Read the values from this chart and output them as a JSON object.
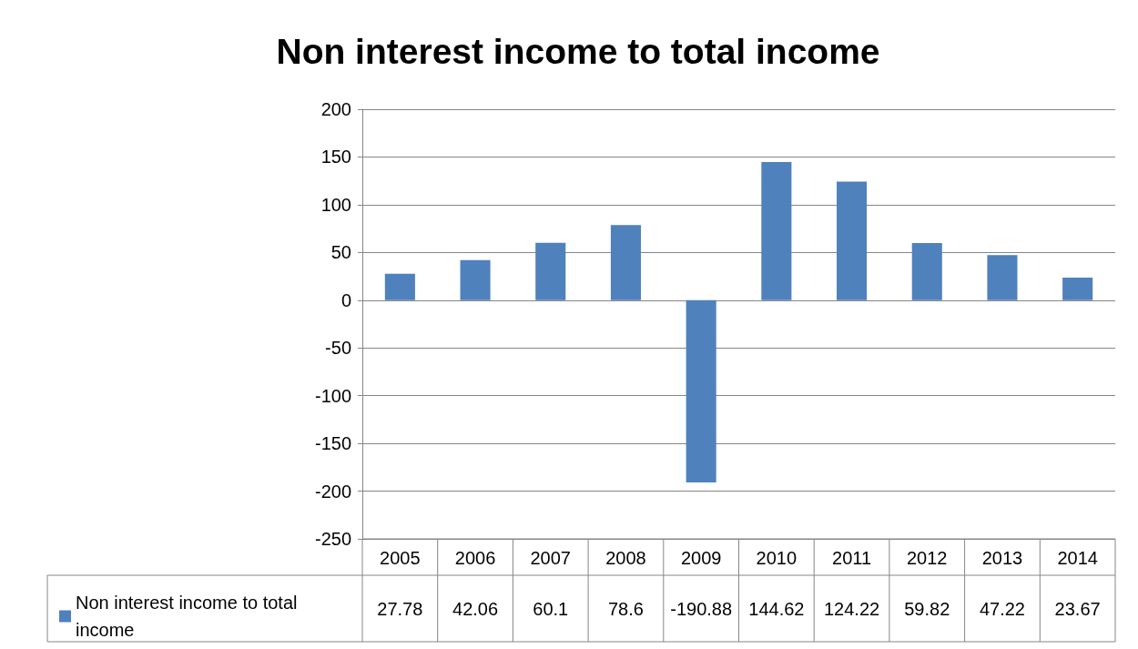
{
  "chart_data": {
    "type": "bar",
    "title": "Non interest income to total income",
    "categories": [
      "2005",
      "2006",
      "2007",
      "2008",
      "2009",
      "2010",
      "2011",
      "2012",
      "2013",
      "2014"
    ],
    "series": [
      {
        "name": "Non interest income to total income",
        "color": "#4f81bd",
        "values": [
          27.78,
          42.06,
          60.1,
          78.6,
          -190.88,
          144.62,
          124.22,
          59.82,
          47.22,
          23.67
        ]
      }
    ],
    "ylim": [
      -250,
      200
    ],
    "yticks": [
      -250,
      -200,
      -150,
      -100,
      -50,
      0,
      50,
      100,
      150,
      200
    ],
    "grid": "y",
    "legend": "bottom left",
    "data_labels": true
  }
}
